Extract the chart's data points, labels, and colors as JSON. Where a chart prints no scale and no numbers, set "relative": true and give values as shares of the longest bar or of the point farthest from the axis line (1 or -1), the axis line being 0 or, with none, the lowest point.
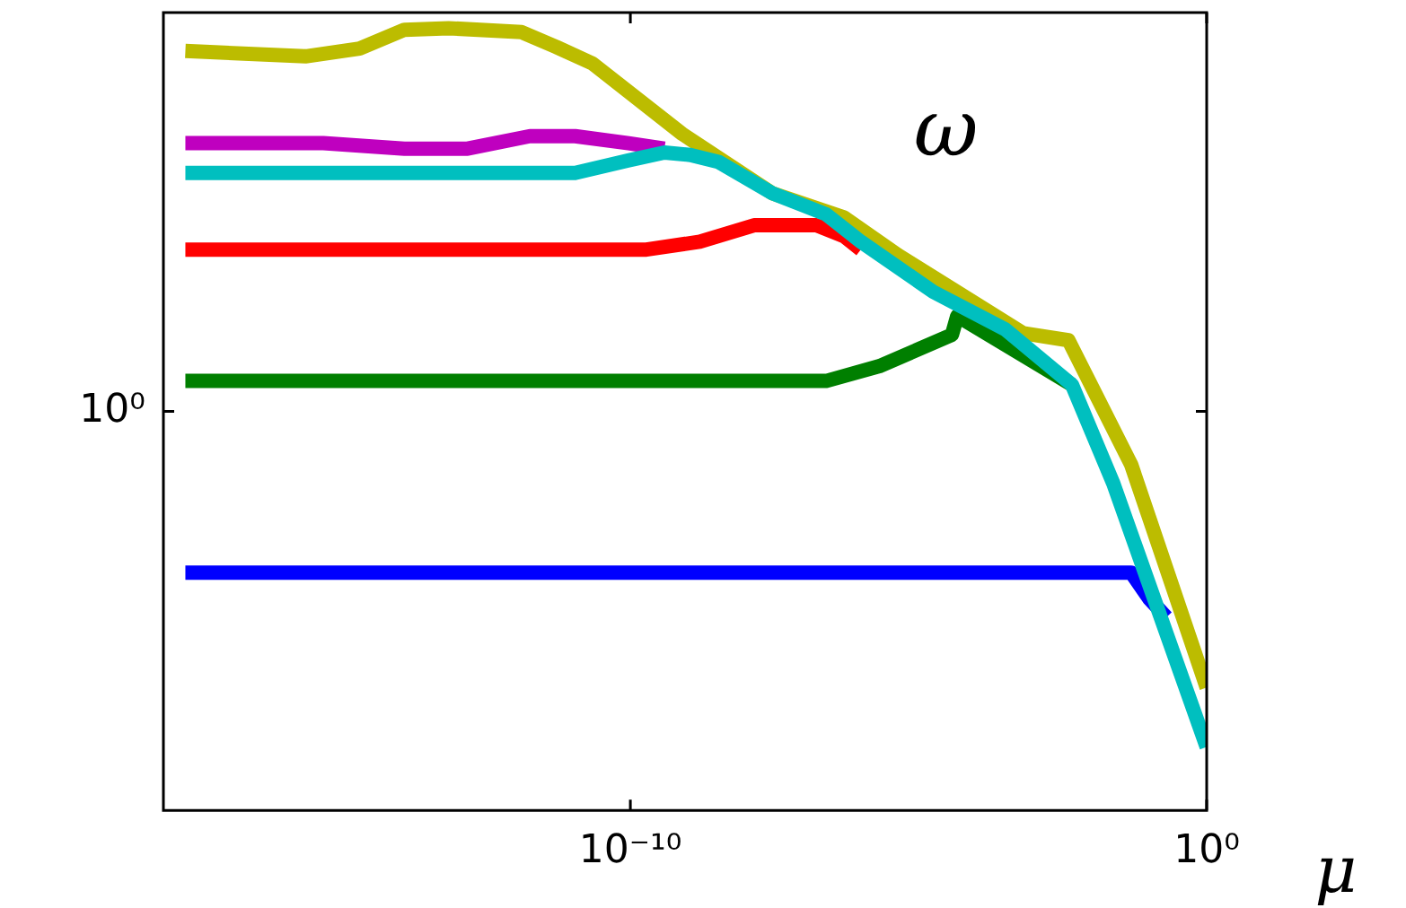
{
  "chart_data": {
    "type": "line",
    "relative": true,
    "log": "x",
    "grid": false,
    "legend": false,
    "xlabel": "μ",
    "annotations": [
      "ω",
      "10⁰"
    ],
    "xlim": [
      7.9e-19,
      1
    ],
    "xticks": [
      {
        "value": 1e-10,
        "label": "10⁻¹⁰"
      },
      {
        "value": 1,
        "label": "10⁰"
      }
    ],
    "series": [
      {
        "color": "#0000ff",
        "x": [
          1.9e-18,
          1.9e-10,
          1e-06,
          0.049,
          0.1,
          0.2
        ],
        "values": [
          0.304,
          0.304,
          0.304,
          0.304,
          0.271,
          0.247
        ]
      },
      {
        "color": "#007f00",
        "x": [
          1.9e-18,
          2.6e-12,
          2.5e-07,
          2.1e-06,
          3.8e-05,
          4.7e-05,
          0.0046
        ],
        "values": [
          0.549,
          0.549,
          0.549,
          0.568,
          0.608,
          0.632,
          0.544
        ]
      },
      {
        "color": "#ff0000",
        "x": [
          1.9e-18,
          2.6e-12,
          1.9e-10,
          1.6e-09,
          1.4e-08,
          1.7e-07,
          5.1e-07,
          1e-06
        ],
        "values": [
          0.717,
          0.717,
          0.717,
          0.727,
          0.748,
          0.748,
          0.734,
          0.717
        ]
      },
      {
        "color": "#bcbc00",
        "x": [
          1.9e-18,
          2.3e-16,
          2e-15,
          1.2e-14,
          7e-14,
          1.3e-12,
          5.2e-12,
          2.2e-11,
          7.9e-10,
          2.9e-08,
          5.1e-07,
          4.4e-06,
          3.8e-05,
          0.00066,
          0.004,
          0.049,
          1
        ],
        "values": [
          0.971,
          0.964,
          0.974,
          0.998,
          1.0,
          0.995,
          0.976,
          0.955,
          0.865,
          0.789,
          0.758,
          0.71,
          0.667,
          0.61,
          0.601,
          0.442,
          0.157
        ]
      },
      {
        "color": "#bf00bf",
        "x": [
          1.9e-18,
          4.7e-16,
          1.2e-14,
          1.5e-13,
          1.8e-12,
          1.1e-11,
          9.3e-11,
          3.9e-10
        ],
        "values": [
          0.853,
          0.853,
          0.846,
          0.846,
          0.862,
          0.862,
          0.853,
          0.846
        ]
      },
      {
        "color": "#00bfbf",
        "x": [
          1.9e-18,
          3e-13,
          1.1e-11,
          9.3e-11,
          3.9e-10,
          1.1e-09,
          3.4e-09,
          2.9e-08,
          2.5e-07,
          1e-06,
          1.8e-05,
          0.00032,
          0.0046,
          0.024,
          1
        ],
        "values": [
          0.815,
          0.815,
          0.815,
          0.831,
          0.841,
          0.838,
          0.829,
          0.789,
          0.762,
          0.727,
          0.663,
          0.615,
          0.544,
          0.418,
          0.081
        ]
      }
    ]
  }
}
